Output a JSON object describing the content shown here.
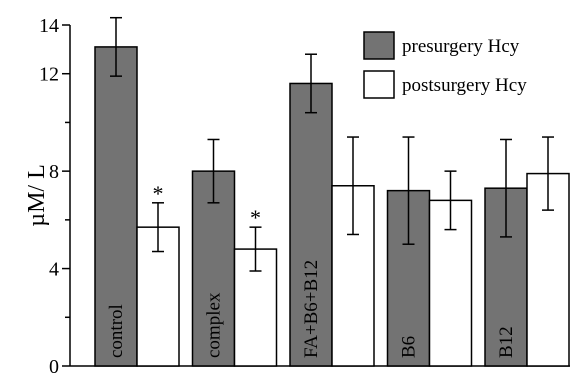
{
  "chart_data": {
    "type": "bar",
    "ylabel": "µM/ L",
    "ylim": [
      0,
      14
    ],
    "yticks": [
      0,
      4,
      8,
      12,
      14
    ],
    "grid": false,
    "legend": "top-right",
    "series": [
      {
        "name": "presurgery Hcy",
        "color": "#737373"
      },
      {
        "name": "postsurgery Hcy",
        "color": "#ffffff"
      }
    ],
    "groups": [
      {
        "label": "control",
        "pre": 13.1,
        "pre_err": 1.2,
        "post": 5.7,
        "post_err": 1.0,
        "post_mark": "*"
      },
      {
        "label": "complex",
        "pre": 8.0,
        "pre_err": 1.3,
        "post": 4.8,
        "post_err": 0.9,
        "post_mark": "*"
      },
      {
        "label": "FA+B6+B12",
        "pre": 11.6,
        "pre_err": 1.2,
        "post": 7.4,
        "post_err": 2.0,
        "post_mark": ""
      },
      {
        "label": "B6",
        "pre": 7.2,
        "pre_err": 2.2,
        "post": 6.8,
        "post_err": 1.2,
        "post_mark": ""
      },
      {
        "label": "B12",
        "pre": 7.3,
        "pre_err": 2.0,
        "post": 7.9,
        "post_err": 1.5,
        "post_mark": ""
      }
    ]
  }
}
